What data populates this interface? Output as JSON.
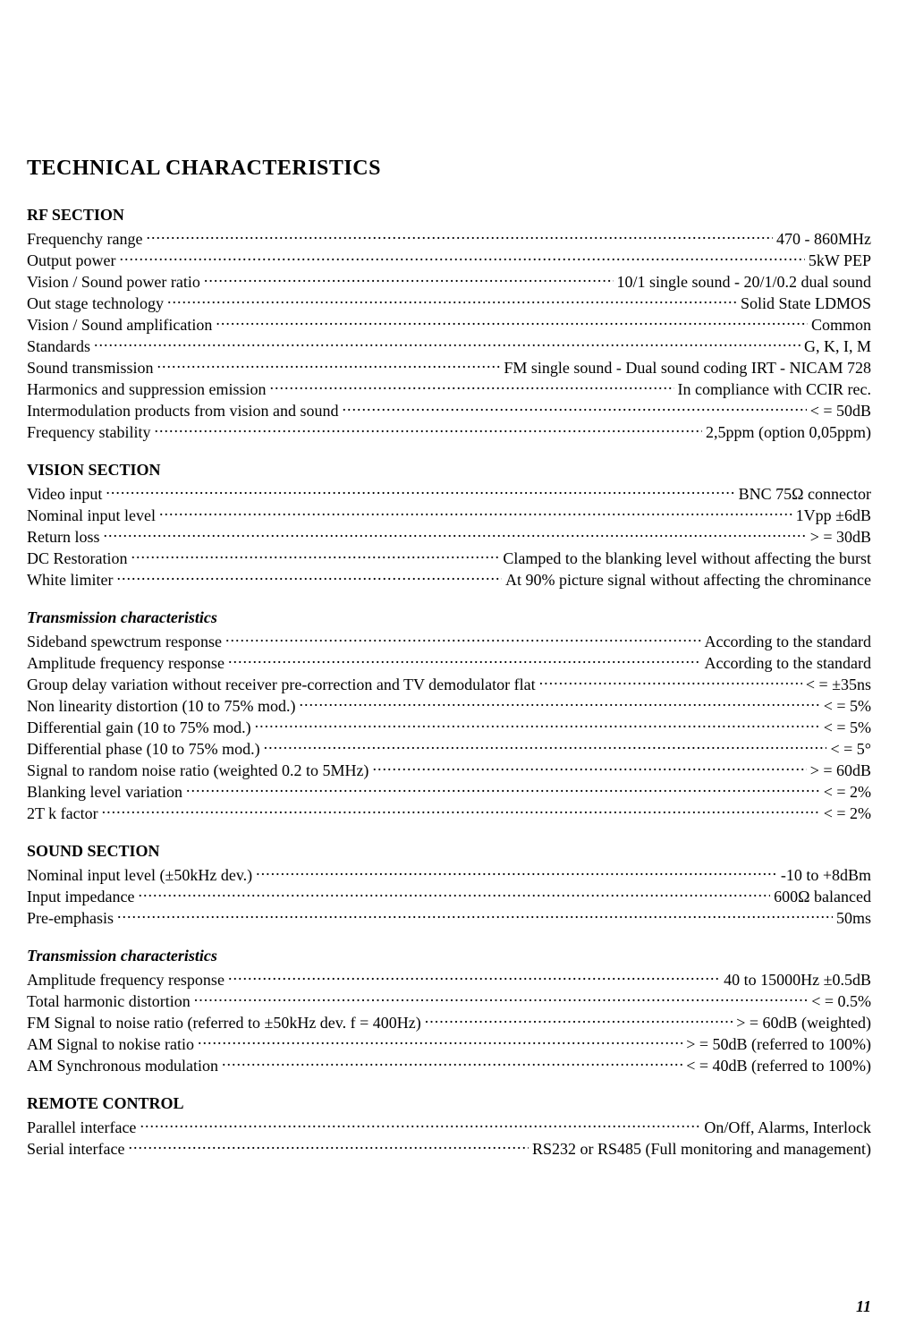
{
  "page_title": "TECHNICAL CHARACTERISTICS",
  "page_number": "11",
  "sections": [
    {
      "heading": "RF SECTION",
      "style": "h2",
      "rows": [
        {
          "label": "Frequenchy range",
          "value": "470 - 860MHz"
        },
        {
          "label": "Output power",
          "value": "5kW PEP"
        },
        {
          "label": "Vision / Sound power ratio",
          "value": "10/1 single sound - 20/1/0.2 dual sound"
        },
        {
          "label": "Out stage technology",
          "value": "Solid State LDMOS"
        },
        {
          "label": "Vision / Sound amplification",
          "value": "Common"
        },
        {
          "label": "Standards",
          "value": "G, K, I, M"
        },
        {
          "label": "Sound transmission",
          "value": "FM single sound - Dual sound coding IRT - NICAM 728"
        },
        {
          "label": "Harmonics and suppression emission",
          "value": "In compliance with CCIR rec."
        },
        {
          "label": "Intermodulation products from vision and sound",
          "value": "< = 50dB"
        },
        {
          "label": "Frequency stability",
          "value": "2,5ppm (option 0,05ppm)"
        }
      ]
    },
    {
      "heading": "VISION SECTION",
      "style": "h2",
      "rows": [
        {
          "label": "Video input",
          "value": "BNC 75Ω connector"
        },
        {
          "label": "Nominal input level",
          "value": "1Vpp ±6dB"
        },
        {
          "label": "Return loss",
          "value": "> = 30dB"
        },
        {
          "label": "DC Restoration",
          "value": "Clamped to the blanking level without affecting the burst"
        },
        {
          "label": "White limiter",
          "value": "At 90% picture signal without affecting the chrominance"
        }
      ]
    },
    {
      "heading": "Transmission characteristics",
      "style": "h3",
      "rows": [
        {
          "label": "Sideband spewctrum response",
          "value": "According to the standard"
        },
        {
          "label": "Amplitude frequency response",
          "value": "According to the standard"
        },
        {
          "label": "Group delay variation without receiver pre-correction and TV demodulator flat",
          "value": "< = ±35ns"
        },
        {
          "label": "Non linearity distortion (10 to 75% mod.)",
          "value": "< = 5%"
        },
        {
          "label": "Differential gain (10 to 75% mod.)",
          "value": "< = 5%"
        },
        {
          "label": "Differential phase (10 to 75% mod.)",
          "value": "< = 5°"
        },
        {
          "label": "Signal to random noise ratio (weighted 0.2 to 5MHz)",
          "value": "> = 60dB"
        },
        {
          "label": "Blanking level variation",
          "value": "< = 2%"
        },
        {
          "label": "2T k factor",
          "value": "< = 2%"
        }
      ]
    },
    {
      "heading": "SOUND SECTION",
      "style": "h2",
      "rows": [
        {
          "label": "Nominal input level (±50kHz dev.)",
          "value": "-10 to +8dBm"
        },
        {
          "label": "Input impedance",
          "value": "600Ω balanced"
        },
        {
          "label": "Pre-emphasis",
          "value": "50ms"
        }
      ]
    },
    {
      "heading": "Transmission characteristics",
      "style": "h3",
      "rows": [
        {
          "label": "Amplitude frequency response",
          "value": "40 to 15000Hz ±0.5dB"
        },
        {
          "label": "Total harmonic distortion",
          "value": "< = 0.5%"
        },
        {
          "label": "FM Signal to noise ratio (referred to ±50kHz dev. f = 400Hz)",
          "value": "> = 60dB (weighted)"
        },
        {
          "label": "AM Signal to nokise ratio",
          "value": "> = 50dB (referred to 100%)"
        },
        {
          "label": "AM Synchronous modulation",
          "value": "< = 40dB (referred to 100%)"
        }
      ]
    },
    {
      "heading": "REMOTE CONTROL",
      "style": "h2",
      "rows": [
        {
          "label": "Parallel interface",
          "value": "On/Off, Alarms, Interlock"
        },
        {
          "label": "Serial interface",
          "value": "RS232 or RS485 (Full monitoring and management)"
        }
      ]
    }
  ]
}
